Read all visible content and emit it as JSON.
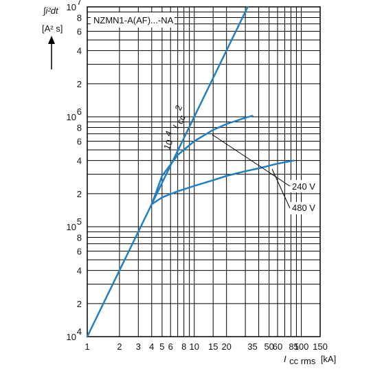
{
  "chart_data": {
    "type": "line",
    "title": "NZMN1-A(AF)...-NA",
    "ylabel": {
      "line1": "∫i²dt",
      "line2": "[A² s]"
    },
    "xlabel": {
      "main": "I",
      "sub": "cc rms",
      "unit": "[kA]"
    },
    "x_scale": "log",
    "y_scale": "log",
    "xlim": [
      1,
      150
    ],
    "ylim": [
      10000,
      10000000
    ],
    "x_tick_labels": [
      {
        "v": 1,
        "t": "1"
      },
      {
        "v": 2,
        "t": "2"
      },
      {
        "v": 3,
        "t": "3"
      },
      {
        "v": 4,
        "t": "4"
      },
      {
        "v": 5,
        "t": "5"
      },
      {
        "v": 6,
        "t": "6"
      },
      {
        "v": 8,
        "t": "8"
      },
      {
        "v": 10,
        "t": "10"
      },
      {
        "v": 15,
        "t": "15"
      },
      {
        "v": 20,
        "t": "20"
      },
      {
        "v": 35,
        "t": "35"
      },
      {
        "v": 50,
        "t": "50"
      },
      {
        "v": 60,
        "t": "60"
      },
      {
        "v": 85,
        "t": "85"
      },
      {
        "v": 100,
        "t": "100"
      },
      {
        "v": 150,
        "t": "150"
      }
    ],
    "y_tick_labels": [
      {
        "v": 10000,
        "t": "10",
        "e": "4"
      },
      {
        "v": 20000,
        "t": "2"
      },
      {
        "v": 40000,
        "t": "4"
      },
      {
        "v": 60000,
        "t": "6"
      },
      {
        "v": 80000,
        "t": "8"
      },
      {
        "v": 100000,
        "t": "10",
        "e": "5"
      },
      {
        "v": 200000,
        "t": "2"
      },
      {
        "v": 400000,
        "t": "4"
      },
      {
        "v": 600000,
        "t": "6"
      },
      {
        "v": 800000,
        "t": "8"
      },
      {
        "v": 1000000,
        "t": "10",
        "e": "6"
      },
      {
        "v": 2000000,
        "t": "2"
      },
      {
        "v": 4000000,
        "t": "4"
      },
      {
        "v": 6000000,
        "t": "6"
      },
      {
        "v": 8000000,
        "t": "8"
      },
      {
        "v": 10000000,
        "t": "10",
        "e": "7"
      }
    ],
    "grid_x": [
      1,
      2,
      3,
      4,
      5,
      6,
      7,
      8,
      9,
      10,
      15,
      20,
      30,
      40,
      50,
      60,
      70,
      80,
      90,
      100,
      150
    ],
    "grid_y": [
      10000,
      20000,
      30000,
      40000,
      50000,
      60000,
      70000,
      80000,
      90000,
      100000,
      200000,
      300000,
      400000,
      500000,
      600000,
      700000,
      800000,
      900000,
      1000000,
      2000000,
      3000000,
      4000000,
      5000000,
      6000000,
      7000000,
      8000000,
      9000000,
      10000000
    ],
    "series": [
      {
        "key": "ref",
        "x": [
          1,
          31.6
        ],
        "y": [
          10000,
          10000000
        ]
      },
      {
        "key": "s240",
        "x": [
          4,
          5,
          7,
          10,
          15,
          20,
          30,
          35
        ],
        "y": [
          160000,
          290000,
          450000,
          600000,
          760000,
          860000,
          980000,
          1020000
        ]
      },
      {
        "key": "s480",
        "x": [
          4,
          5,
          7,
          10,
          15,
          20,
          30,
          40,
          60,
          85
        ],
        "y": [
          160000,
          185000,
          210000,
          235000,
          265000,
          290000,
          320000,
          340000,
          375000,
          400000
        ]
      }
    ],
    "annotations": [
      {
        "key": "ref_label",
        "text": "10",
        "exp": "4",
        "var": "I",
        "sub": "cc",
        "sup": "2"
      },
      {
        "key": "a240",
        "text": "240 V"
      },
      {
        "key": "a480",
        "text": "480 V"
      }
    ],
    "line_color": "#1f7fc0",
    "grid": true
  }
}
